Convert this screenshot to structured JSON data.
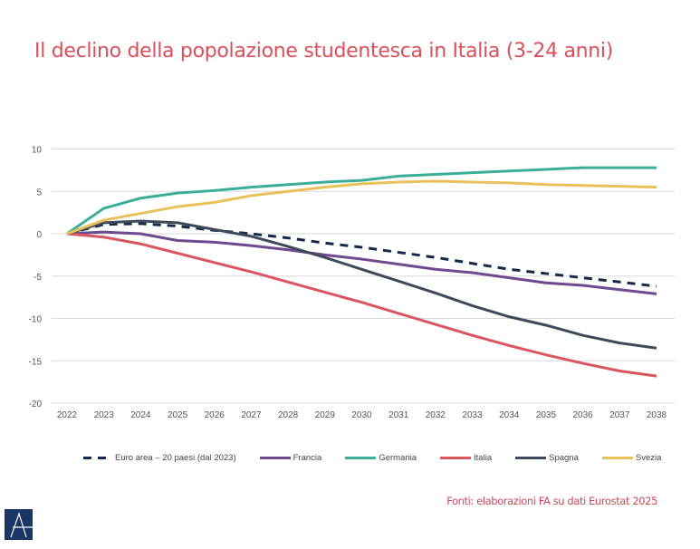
{
  "chart_data": {
    "type": "line",
    "title": "Il declino della popolazione studentesca in Italia (3-24 anni)",
    "x": [
      "2022",
      "2023",
      "2024",
      "2025",
      "2026",
      "2027",
      "2028",
      "2029",
      "2030",
      "2031",
      "2032",
      "2033",
      "2034",
      "2035",
      "2036",
      "2037",
      "2038"
    ],
    "ylim": [
      -20,
      10
    ],
    "yticks": [
      10,
      5,
      0,
      -5,
      -10,
      -15,
      -20
    ],
    "grid": true,
    "legend": "bottom",
    "series": [
      {
        "name": "Euro area – 20 paesi (dal 2023)",
        "color": "#14294a",
        "dashed": true,
        "values": [
          0,
          1.1,
          1.2,
          0.9,
          0.4,
          0.0,
          -0.5,
          -1.1,
          -1.6,
          -2.2,
          -2.8,
          -3.5,
          -4.2,
          -4.7,
          -5.2,
          -5.7,
          -6.2
        ]
      },
      {
        "name": "Francia",
        "color": "#6e4a8e",
        "dashed": false,
        "values": [
          0,
          0.2,
          0.0,
          -0.8,
          -1.0,
          -1.4,
          -1.9,
          -2.5,
          -3.0,
          -3.6,
          -4.2,
          -4.6,
          -5.2,
          -5.8,
          -6.1,
          -6.6,
          -7.1
        ]
      },
      {
        "name": "Germania",
        "color": "#3aae98",
        "dashed": false,
        "values": [
          0,
          3.0,
          4.2,
          4.8,
          5.1,
          5.5,
          5.8,
          6.1,
          6.3,
          6.8,
          7.0,
          7.2,
          7.4,
          7.6,
          7.8,
          7.8,
          7.8
        ]
      },
      {
        "name": "Italia",
        "color": "#d9555f",
        "dashed": false,
        "values": [
          0,
          -0.4,
          -1.2,
          -2.3,
          -3.4,
          -4.5,
          -5.7,
          -6.9,
          -8.1,
          -9.4,
          -10.7,
          -12.0,
          -13.2,
          -14.3,
          -15.3,
          -16.2,
          -16.8
        ]
      },
      {
        "name": "Spagna",
        "color": "#3e4a5a",
        "dashed": false,
        "values": [
          0,
          1.3,
          1.5,
          1.3,
          0.5,
          -0.3,
          -1.5,
          -2.8,
          -4.2,
          -5.6,
          -7.0,
          -8.5,
          -9.8,
          -10.8,
          -12.0,
          -12.9,
          -13.5
        ]
      },
      {
        "name": "Svezia",
        "color": "#e8c15a",
        "dashed": false,
        "values": [
          0,
          1.6,
          2.4,
          3.2,
          3.7,
          4.5,
          5.0,
          5.5,
          5.9,
          6.1,
          6.2,
          6.1,
          6.0,
          5.8,
          5.7,
          5.6,
          5.5
        ]
      }
    ]
  },
  "source": "Fonti: elaborazioni FA su dati Eurostat 2025",
  "logo_text": "A"
}
